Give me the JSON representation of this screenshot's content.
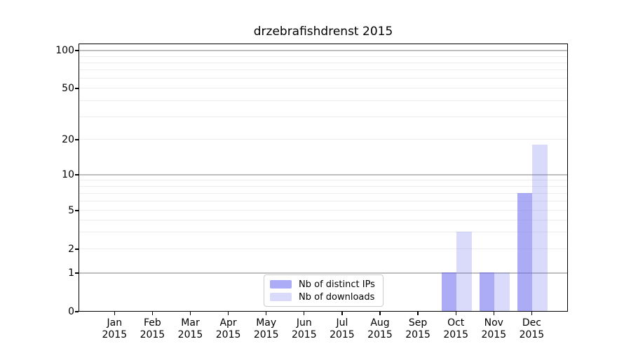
{
  "title": "drzebrafishdrenst 2015",
  "chart_data": {
    "type": "bar",
    "title": "drzebrafishdrenst 2015",
    "categories": [
      "Jan",
      "Feb",
      "Mar",
      "Apr",
      "May",
      "Jun",
      "Jul",
      "Aug",
      "Sep",
      "Oct",
      "Nov",
      "Dec"
    ],
    "category_year": "2015",
    "series": [
      {
        "name": "Nb of distinct IPs",
        "color": "rgba(102,102,238,0.55)",
        "values": [
          0,
          0,
          0,
          0,
          0,
          0,
          0,
          0,
          0,
          1,
          1,
          7
        ]
      },
      {
        "name": "Nb of downloads",
        "color": "rgba(102,102,238,0.24)",
        "values": [
          0,
          0,
          0,
          0,
          0,
          0,
          0,
          0,
          0,
          3,
          1,
          18
        ]
      }
    ],
    "base_color": "#6666ee",
    "yaxis": {
      "scale": "symlog",
      "range": [
        0,
        100
      ],
      "ticks": [
        0,
        1,
        2,
        5,
        10,
        20,
        50,
        100
      ],
      "major_grid_ticks": [
        1,
        10,
        100
      ],
      "minor_grid_ticks": [
        3,
        4,
        6,
        7,
        8,
        9,
        30,
        40,
        60,
        70,
        80,
        90
      ]
    },
    "xlabel": "",
    "ylabel": "",
    "grid": true,
    "legend_position": "lower center inside"
  }
}
